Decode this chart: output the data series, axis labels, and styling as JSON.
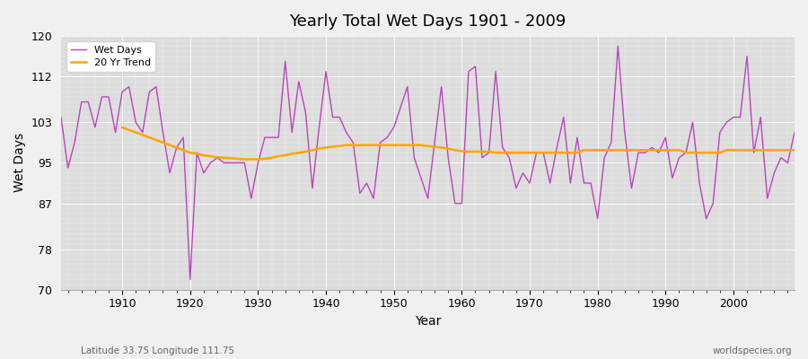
{
  "title": "Yearly Total Wet Days 1901 - 2009",
  "xlabel": "Year",
  "ylabel": "Wet Days",
  "bottom_left_label": "Latitude 33.75 Longitude 111.75",
  "bottom_right_label": "worldspecies.org",
  "ylim": [
    70,
    120
  ],
  "yticks": [
    70,
    78,
    87,
    95,
    103,
    112,
    120
  ],
  "xlim": [
    1901,
    2009
  ],
  "wet_days_color": "#bb44bb",
  "trend_color": "#FFA500",
  "bg_color": "#dcdcdc",
  "fig_color": "#f0f0f0",
  "wet_days": [
    104,
    94,
    99,
    107,
    107,
    102,
    108,
    108,
    101,
    109,
    110,
    103,
    101,
    109,
    110,
    101,
    93,
    98,
    100,
    72,
    97,
    93,
    95,
    96,
    95,
    95,
    95,
    95,
    88,
    95,
    100,
    100,
    100,
    115,
    101,
    111,
    105,
    90,
    102,
    113,
    104,
    104,
    101,
    99,
    89,
    91,
    88,
    99,
    100,
    102,
    106,
    110,
    96,
    92,
    88,
    99,
    110,
    96,
    87,
    87,
    113,
    114,
    96,
    97,
    113,
    98,
    96,
    90,
    93,
    91,
    97,
    97,
    91,
    98,
    104,
    91,
    100,
    91,
    91,
    84,
    96,
    99,
    118,
    101,
    90,
    97,
    97,
    98,
    97,
    100,
    92,
    96,
    97,
    103,
    91,
    84,
    87,
    101,
    103,
    104,
    104,
    116,
    97,
    104,
    88,
    93,
    96,
    95,
    101
  ],
  "trend": [
    null,
    null,
    null,
    null,
    null,
    null,
    null,
    null,
    null,
    102.0,
    101.5,
    101.0,
    100.5,
    100.0,
    99.5,
    99.0,
    98.5,
    98.0,
    97.5,
    97.0,
    96.8,
    96.5,
    96.3,
    96.1,
    96.0,
    95.9,
    95.8,
    95.7,
    95.7,
    95.7,
    95.8,
    96.0,
    96.3,
    96.5,
    96.8,
    97.0,
    97.2,
    97.5,
    97.8,
    98.0,
    98.2,
    98.3,
    98.5,
    98.5,
    98.5,
    98.5,
    98.5,
    98.5,
    98.5,
    98.5,
    98.5,
    98.5,
    98.5,
    98.5,
    98.3,
    98.2,
    98.0,
    97.8,
    97.5,
    97.3,
    97.2,
    97.2,
    97.2,
    97.2,
    97.0,
    97.0,
    97.0,
    97.0,
    97.0,
    97.0,
    97.0,
    97.0,
    97.0,
    97.0,
    97.0,
    97.0,
    97.0,
    97.5,
    97.5,
    97.5,
    97.5,
    97.5,
    97.5,
    97.5,
    97.5,
    97.5,
    97.5,
    97.5,
    97.5,
    97.5,
    97.5,
    97.5,
    97.0,
    97.0,
    97.0,
    97.0,
    97.0,
    97.0,
    97.5,
    97.5,
    97.5,
    97.5,
    97.5,
    97.5,
    97.5,
    97.5,
    97.5,
    97.5,
    97.5
  ]
}
